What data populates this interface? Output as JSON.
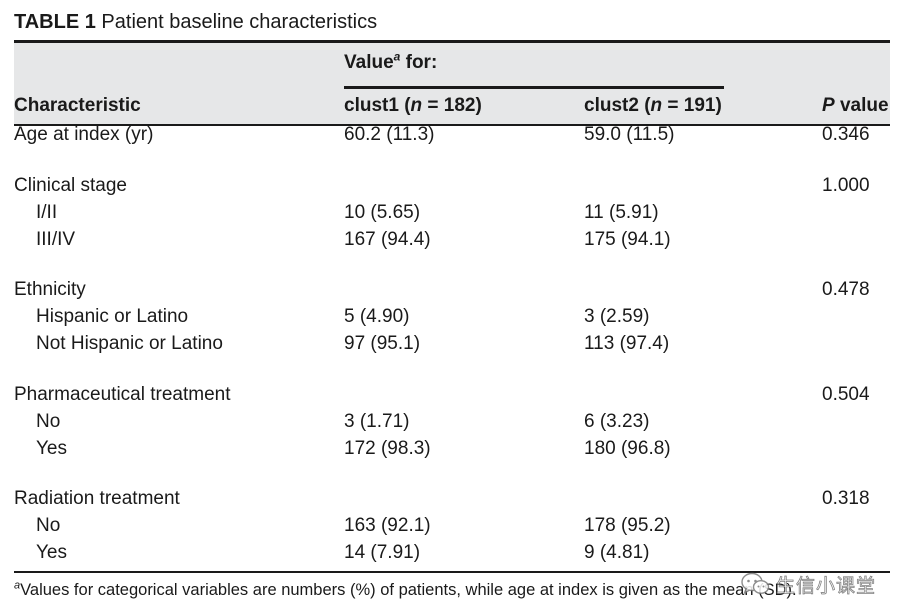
{
  "caption": {
    "number": "TABLE 1",
    "title": "Patient baseline characteristics"
  },
  "header": {
    "value_for": "Value",
    "value_for_sup": "a",
    "value_for_suffix": " for:",
    "characteristic": "Characteristic",
    "clust1_name": "clust1 (",
    "clust1_n": "n",
    "clust1_count": " = 182)",
    "clust2_name": "clust2 (",
    "clust2_n": "n",
    "clust2_count": " = 191)",
    "p_label_italic": "P",
    "p_label_rest": " value"
  },
  "rows": [
    {
      "characteristic": "Age at index (yr)",
      "clust1": "60.2 (11.3)",
      "clust2": "59.0 (11.5)",
      "p": "0.346"
    },
    {
      "characteristic": "Clinical stage",
      "clust1": "",
      "clust2": "",
      "p": "1.000"
    },
    {
      "characteristic": "I/II",
      "clust1": "10 (5.65)",
      "clust2": "11 (5.91)",
      "p": ""
    },
    {
      "characteristic": "III/IV",
      "clust1": "167 (94.4)",
      "clust2": "175 (94.1)",
      "p": ""
    },
    {
      "characteristic": "Ethnicity",
      "clust1": "",
      "clust2": "",
      "p": "0.478"
    },
    {
      "characteristic": "Hispanic or Latino",
      "clust1": "5 (4.90)",
      "clust2": "3 (2.59)",
      "p": ""
    },
    {
      "characteristic": "Not Hispanic or Latino",
      "clust1": "97 (95.1)",
      "clust2": "113 (97.4)",
      "p": ""
    },
    {
      "characteristic": "Pharmaceutical treatment",
      "clust1": "",
      "clust2": "",
      "p": "0.504"
    },
    {
      "characteristic": "No",
      "clust1": "3 (1.71)",
      "clust2": "6 (3.23)",
      "p": ""
    },
    {
      "characteristic": "Yes",
      "clust1": "172 (98.3)",
      "clust2": "180 (96.8)",
      "p": ""
    },
    {
      "characteristic": "Radiation treatment",
      "clust1": "",
      "clust2": "",
      "p": "0.318"
    },
    {
      "characteristic": "No",
      "clust1": "163 (92.1)",
      "clust2": "178 (95.2)",
      "p": ""
    },
    {
      "characteristic": "Yes",
      "clust1": "14 (7.91)",
      "clust2": "9 (4.81)",
      "p": ""
    }
  ],
  "footnote": {
    "marker": "a",
    "text": "Values for categorical variables are numbers (%) of patients, while age at index is given as the mean (SD)."
  },
  "watermark": {
    "icon": "wechat-icon",
    "text": "生信小课堂"
  },
  "colors": {
    "header_band": "#e6e7e8",
    "text": "#1a1a1a",
    "rules": "#1a1a1a"
  }
}
